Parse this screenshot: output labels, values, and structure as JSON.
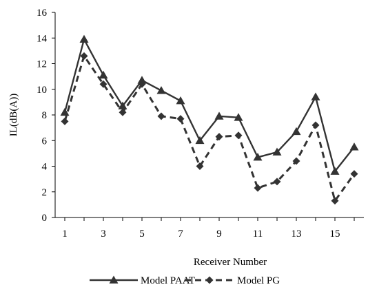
{
  "chart_data": {
    "type": "line",
    "xlabel": "Receiver Number",
    "ylabel": "IL(dB(A))",
    "x": [
      1,
      2,
      3,
      4,
      5,
      6,
      7,
      8,
      9,
      10,
      11,
      12,
      13,
      14,
      15,
      16
    ],
    "xticks": [
      1,
      3,
      5,
      7,
      9,
      11,
      13,
      15
    ],
    "xlim": [
      0.5,
      16.5
    ],
    "ylim": [
      0,
      16
    ],
    "yticks": [
      0,
      2,
      4,
      6,
      8,
      10,
      12,
      14,
      16
    ],
    "grid": false,
    "legend": "bottom",
    "series": [
      {
        "name": "Model PAAT",
        "values": [
          8.2,
          13.9,
          11.1,
          8.7,
          10.7,
          9.9,
          9.1,
          6.0,
          7.9,
          7.8,
          4.7,
          5.1,
          6.7,
          9.4,
          3.6,
          5.5
        ],
        "color": "#333333",
        "dash": "solid",
        "marker": "triangle"
      },
      {
        "name": "Model PG",
        "values": [
          7.5,
          12.6,
          10.4,
          8.2,
          10.4,
          7.9,
          7.7,
          4.0,
          6.3,
          6.4,
          2.3,
          2.8,
          4.4,
          7.2,
          1.3,
          3.4
        ],
        "color": "#333333",
        "dash": "dashed",
        "marker": "diamond"
      }
    ]
  }
}
